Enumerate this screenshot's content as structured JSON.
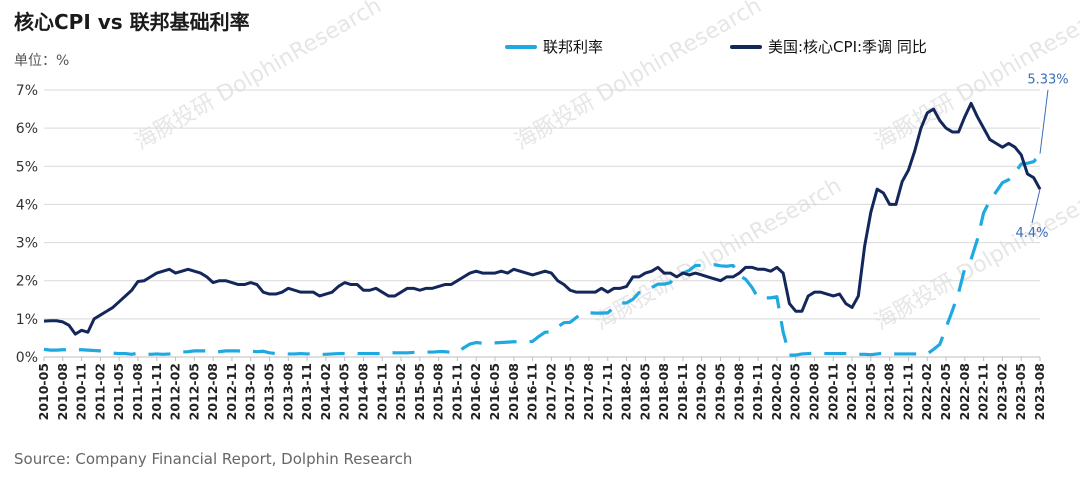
{
  "header": {
    "title": "核心CPI vs 联邦基础利率",
    "unit": "单位：%"
  },
  "footer": {
    "source": "Source: Company Financial Report,  Dolphin Research"
  },
  "watermark": "海豚投研 DolphinResearch",
  "colors": {
    "rate": "#1ea9e1",
    "cpi": "#14275a",
    "grid": "#d9d9d9",
    "annotation": "#3b6fb6"
  },
  "chart_data": {
    "type": "line",
    "ylim": [
      0,
      7
    ],
    "yticks": [
      "0%",
      "1%",
      "2%",
      "3%",
      "4%",
      "5%",
      "6%",
      "7%"
    ],
    "grid": true,
    "legend_position": "top",
    "x": [
      "2010-05",
      "2010-06",
      "2010-07",
      "2010-08",
      "2010-09",
      "2010-10",
      "2010-11",
      "2010-12",
      "2011-01",
      "2011-02",
      "2011-03",
      "2011-04",
      "2011-05",
      "2011-06",
      "2011-07",
      "2011-08",
      "2011-09",
      "2011-10",
      "2011-11",
      "2011-12",
      "2012-01",
      "2012-02",
      "2012-03",
      "2012-04",
      "2012-05",
      "2012-06",
      "2012-07",
      "2012-08",
      "2012-09",
      "2012-10",
      "2012-11",
      "2012-12",
      "2013-01",
      "2013-02",
      "2013-03",
      "2013-04",
      "2013-05",
      "2013-06",
      "2013-07",
      "2013-08",
      "2013-09",
      "2013-10",
      "2013-11",
      "2013-12",
      "2014-01",
      "2014-02",
      "2014-03",
      "2014-04",
      "2014-05",
      "2014-06",
      "2014-07",
      "2014-08",
      "2014-09",
      "2014-10",
      "2014-11",
      "2014-12",
      "2015-01",
      "2015-02",
      "2015-03",
      "2015-04",
      "2015-05",
      "2015-06",
      "2015-07",
      "2015-08",
      "2015-09",
      "2015-10",
      "2015-11",
      "2015-12",
      "2016-01",
      "2016-02",
      "2016-03",
      "2016-04",
      "2016-05",
      "2016-06",
      "2016-07",
      "2016-08",
      "2016-09",
      "2016-10",
      "2016-11",
      "2016-12",
      "2017-01",
      "2017-02",
      "2017-03",
      "2017-04",
      "2017-05",
      "2017-06",
      "2017-07",
      "2017-08",
      "2017-09",
      "2017-10",
      "2017-11",
      "2017-12",
      "2018-01",
      "2018-02",
      "2018-03",
      "2018-04",
      "2018-05",
      "2018-06",
      "2018-07",
      "2018-08",
      "2018-09",
      "2018-10",
      "2018-11",
      "2018-12",
      "2019-01",
      "2019-02",
      "2019-03",
      "2019-04",
      "2019-05",
      "2019-06",
      "2019-07",
      "2019-08",
      "2019-09",
      "2019-10",
      "2019-11",
      "2019-12",
      "2020-01",
      "2020-02",
      "2020-03",
      "2020-04",
      "2020-05",
      "2020-06",
      "2020-07",
      "2020-08",
      "2020-09",
      "2020-10",
      "2020-11",
      "2020-12",
      "2021-01",
      "2021-02",
      "2021-03",
      "2021-04",
      "2021-05",
      "2021-06",
      "2021-07",
      "2021-08",
      "2021-09",
      "2021-10",
      "2021-11",
      "2021-12",
      "2022-01",
      "2022-02",
      "2022-03",
      "2022-04",
      "2022-05",
      "2022-06",
      "2022-07",
      "2022-08",
      "2022-09",
      "2022-10",
      "2022-11",
      "2022-12",
      "2023-01",
      "2023-02",
      "2023-03",
      "2023-04",
      "2023-05",
      "2023-06",
      "2023-07",
      "2023-08"
    ],
    "tick_every": 3,
    "series": [
      {
        "name": "联邦利率",
        "style": "dashed",
        "values": [
          0.2,
          0.18,
          0.18,
          0.19,
          0.19,
          0.19,
          0.19,
          0.18,
          0.17,
          0.16,
          0.14,
          0.1,
          0.09,
          0.09,
          0.07,
          0.1,
          0.08,
          0.07,
          0.08,
          0.07,
          0.08,
          0.1,
          0.13,
          0.14,
          0.16,
          0.16,
          0.16,
          0.13,
          0.14,
          0.16,
          0.16,
          0.16,
          0.14,
          0.15,
          0.14,
          0.15,
          0.11,
          0.09,
          0.09,
          0.08,
          0.08,
          0.09,
          0.08,
          0.09,
          0.07,
          0.07,
          0.08,
          0.09,
          0.09,
          0.1,
          0.09,
          0.09,
          0.09,
          0.09,
          0.09,
          0.12,
          0.11,
          0.11,
          0.11,
          0.12,
          0.12,
          0.13,
          0.13,
          0.14,
          0.14,
          0.12,
          0.12,
          0.24,
          0.34,
          0.38,
          0.36,
          0.37,
          0.37,
          0.38,
          0.39,
          0.4,
          0.4,
          0.4,
          0.41,
          0.54,
          0.65,
          0.66,
          0.79,
          0.9,
          0.91,
          1.04,
          1.15,
          1.16,
          1.15,
          1.15,
          1.16,
          1.3,
          1.41,
          1.42,
          1.51,
          1.69,
          1.7,
          1.82,
          1.91,
          1.91,
          1.95,
          2.19,
          2.2,
          2.27,
          2.4,
          2.4,
          2.41,
          2.42,
          2.39,
          2.38,
          2.4,
          2.13,
          2.04,
          1.83,
          1.55,
          1.55,
          1.55,
          1.58,
          0.65,
          0.05,
          0.05,
          0.08,
          0.09,
          0.1,
          0.09,
          0.09,
          0.09,
          0.09,
          0.09,
          0.08,
          0.07,
          0.07,
          0.06,
          0.08,
          0.1,
          0.09,
          0.08,
          0.08,
          0.08,
          0.08,
          0.08,
          0.08,
          0.2,
          0.33,
          0.77,
          1.21,
          1.68,
          2.33,
          2.56,
          3.08,
          3.78,
          4.1,
          4.33,
          4.57,
          4.65,
          4.83,
          5.06,
          5.08,
          5.12,
          5.33
        ]
      },
      {
        "name": "美国:核心CPI:季调 同比",
        "style": "solid",
        "values": [
          0.94,
          0.95,
          0.95,
          0.92,
          0.83,
          0.6,
          0.7,
          0.65,
          1.0,
          1.1,
          1.2,
          1.3,
          1.45,
          1.6,
          1.75,
          1.98,
          2.0,
          2.1,
          2.2,
          2.25,
          2.3,
          2.2,
          2.25,
          2.3,
          2.25,
          2.2,
          2.1,
          1.95,
          2.0,
          2.0,
          1.95,
          1.9,
          1.9,
          1.95,
          1.9,
          1.7,
          1.65,
          1.65,
          1.7,
          1.8,
          1.75,
          1.7,
          1.7,
          1.7,
          1.6,
          1.65,
          1.7,
          1.85,
          1.95,
          1.9,
          1.9,
          1.75,
          1.75,
          1.8,
          1.7,
          1.6,
          1.6,
          1.7,
          1.8,
          1.8,
          1.75,
          1.8,
          1.8,
          1.85,
          1.9,
          1.9,
          2.0,
          2.1,
          2.2,
          2.25,
          2.2,
          2.2,
          2.2,
          2.25,
          2.2,
          2.3,
          2.25,
          2.2,
          2.15,
          2.2,
          2.25,
          2.2,
          2.0,
          1.9,
          1.75,
          1.7,
          1.7,
          1.7,
          1.7,
          1.8,
          1.7,
          1.8,
          1.8,
          1.85,
          2.1,
          2.1,
          2.2,
          2.25,
          2.35,
          2.2,
          2.2,
          2.1,
          2.2,
          2.15,
          2.2,
          2.15,
          2.1,
          2.05,
          2.0,
          2.1,
          2.1,
          2.2,
          2.35,
          2.35,
          2.3,
          2.3,
          2.25,
          2.35,
          2.2,
          1.4,
          1.2,
          1.2,
          1.6,
          1.7,
          1.7,
          1.65,
          1.6,
          1.65,
          1.4,
          1.3,
          1.6,
          2.9,
          3.8,
          4.4,
          4.3,
          4.0,
          4.0,
          4.6,
          4.9,
          5.4,
          6.0,
          6.4,
          6.5,
          6.2,
          6.0,
          5.9,
          5.9,
          6.3,
          6.65,
          6.3,
          6.0,
          5.7,
          5.6,
          5.5,
          5.6,
          5.5,
          5.3,
          4.8,
          4.7,
          4.4
        ]
      }
    ],
    "annotations": [
      {
        "series": 0,
        "label": "5.33%"
      },
      {
        "series": 1,
        "label": "4.4%"
      }
    ]
  }
}
